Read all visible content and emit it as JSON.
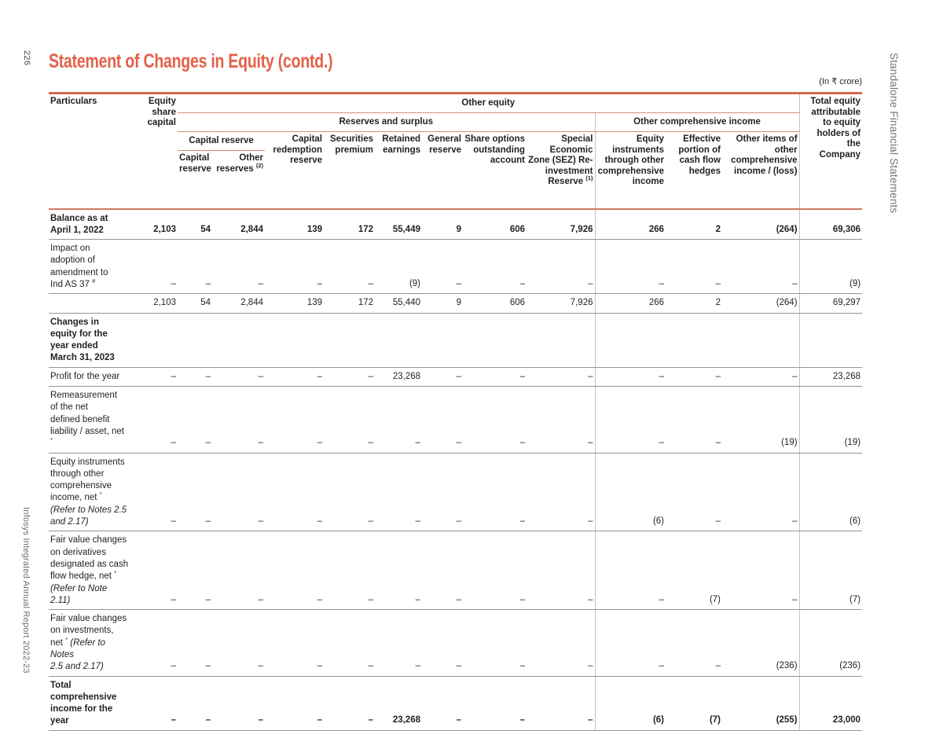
{
  "page": {
    "number": "226",
    "footer": "Infosys Integrated Annual Report 2022-23",
    "side_tab": "Standalone Financial Statements",
    "title": "Statement of Changes in Equity (contd.)",
    "unit_note": "(In ₹ crore)"
  },
  "colors": {
    "accent_title": "#e4604a",
    "rule_coral_thick": "#d4694f",
    "rule_coral_thin": "#d88b76",
    "rule_gray": "#969696",
    "divider_gray": "#c4c4c4",
    "sidebar_gray": "#757575"
  },
  "table": {
    "header": {
      "particulars": "Particulars",
      "equity_share_capital": "Equity share capital",
      "other_equity": "Other equity",
      "reserves_and_surplus": "Reserves and surplus",
      "other_comprehensive_income": "Other comprehensive income",
      "capital_reserve_group": "Capital reserve",
      "capital_reserve": "Capital reserve",
      "other_reserves": "Other reserves ",
      "other_reserves_sup": "(2)",
      "capital_redemption_reserve": "Capital redemption reserve",
      "securities_premium": "Securities premium",
      "retained_earnings": "Retained earnings",
      "general_reserve": "General reserve",
      "share_options": "Share options outstanding account",
      "sez_reserve": "Special Economic Zone (SEZ) Re-investment Reserve ",
      "sez_reserve_sup": "(1)",
      "equity_instruments": "Equity instruments through other comprehensive income",
      "effective_portion": "Effective portion of cash flow hedges",
      "other_items": "Other items of other comprehensive income / (loss)",
      "total_equity": "Total equity attributable to equity holders of the Company"
    },
    "rows": [
      {
        "bold": true,
        "label": [
          {
            "t": "Balance as at"
          },
          {
            "br": 1
          },
          {
            "t": "April 1, 2022"
          }
        ],
        "values": [
          "2,103",
          "54",
          "2,844",
          "139",
          "172",
          "55,449",
          "9",
          "606",
          "7,926",
          "266",
          "2",
          "(264)",
          "69,306"
        ]
      },
      {
        "bold": false,
        "label": [
          {
            "t": "Impact on"
          },
          {
            "br": 1
          },
          {
            "t": "adoption of"
          },
          {
            "br": 1
          },
          {
            "t": "amendment to"
          },
          {
            "br": 1
          },
          {
            "t": "Ind AS 37 "
          },
          {
            "sup": "#"
          }
        ],
        "values": [
          "–",
          "–",
          "–",
          "–",
          "–",
          "(9)",
          "–",
          "–",
          "–",
          "–",
          "–",
          "–",
          "(9)"
        ]
      },
      {
        "bold": false,
        "label": [],
        "values": [
          "2,103",
          "54",
          "2,844",
          "139",
          "172",
          "55,440",
          "9",
          "606",
          "7,926",
          "266",
          "2",
          "(264)",
          "69,297"
        ]
      },
      {
        "bold": true,
        "label": [
          {
            "t": "Changes in"
          },
          {
            "br": 1
          },
          {
            "t": "equity for the"
          },
          {
            "br": 1
          },
          {
            "t": "year ended"
          },
          {
            "br": 1
          },
          {
            "t": "March 31, 2023"
          }
        ],
        "values": [
          "",
          "",
          "",
          "",
          "",
          "",
          "",
          "",
          "",
          "",
          "",
          "",
          ""
        ]
      },
      {
        "bold": false,
        "label": [
          {
            "t": "Profit for the year"
          }
        ],
        "values": [
          "–",
          "–",
          "–",
          "–",
          "–",
          "23,268",
          "–",
          "–",
          "–",
          "–",
          "–",
          "–",
          "23,268"
        ]
      },
      {
        "bold": false,
        "label": [
          {
            "t": "Remeasurement"
          },
          {
            "br": 1
          },
          {
            "t": "of the net"
          },
          {
            "br": 1
          },
          {
            "t": "defined benefit"
          },
          {
            "br": 1
          },
          {
            "t": "liability / asset, net "
          },
          {
            "sup": "*"
          }
        ],
        "values": [
          "–",
          "–",
          "–",
          "–",
          "–",
          "–",
          "–",
          "–",
          "–",
          "–",
          "–",
          "(19)",
          "(19)"
        ]
      },
      {
        "bold": false,
        "label": [
          {
            "t": "Equity instruments"
          },
          {
            "br": 1
          },
          {
            "t": "through other"
          },
          {
            "br": 1
          },
          {
            "t": "comprehensive"
          },
          {
            "br": 1
          },
          {
            "t": "income, net "
          },
          {
            "sup": "*"
          },
          {
            "br": 1
          },
          {
            "i": "(Refer to Notes 2.5"
          },
          {
            "br": 1
          },
          {
            "i": "and 2.17)"
          }
        ],
        "values": [
          "–",
          "–",
          "–",
          "–",
          "–",
          "–",
          "–",
          "–",
          "–",
          "(6)",
          "–",
          "–",
          "(6)"
        ]
      },
      {
        "bold": false,
        "label": [
          {
            "t": "Fair value changes"
          },
          {
            "br": 1
          },
          {
            "t": "on derivatives"
          },
          {
            "br": 1
          },
          {
            "t": "designated as cash"
          },
          {
            "br": 1
          },
          {
            "t": "flow hedge, net "
          },
          {
            "sup": "*"
          },
          {
            "br": 1
          },
          {
            "i": "(Refer to Note 2.11)"
          }
        ],
        "values": [
          "–",
          "–",
          "–",
          "–",
          "–",
          "–",
          "–",
          "–",
          "–",
          "–",
          "(7)",
          "–",
          "(7)"
        ]
      },
      {
        "bold": false,
        "label": [
          {
            "t": "Fair value changes"
          },
          {
            "br": 1
          },
          {
            "t": "on investments,"
          },
          {
            "br": 1
          },
          {
            "t": "net "
          },
          {
            "sup": "*"
          },
          {
            "i": " (Refer to Notes"
          },
          {
            "br": 1
          },
          {
            "i": "2.5 and 2.17)"
          }
        ],
        "values": [
          "–",
          "–",
          "–",
          "–",
          "–",
          "–",
          "–",
          "–",
          "–",
          "–",
          "–",
          "(236)",
          "(236)"
        ]
      },
      {
        "bold": true,
        "label": [
          {
            "t": "Total"
          },
          {
            "br": 1
          },
          {
            "t": "comprehensive"
          },
          {
            "br": 1
          },
          {
            "t": "income for the"
          },
          {
            "br": 1
          },
          {
            "t": "year"
          }
        ],
        "values": [
          "–",
          "–",
          "–",
          "–",
          "–",
          "23,268",
          "–",
          "–",
          "–",
          "(6)",
          "(7)",
          "(255)",
          "23,000"
        ]
      }
    ]
  }
}
